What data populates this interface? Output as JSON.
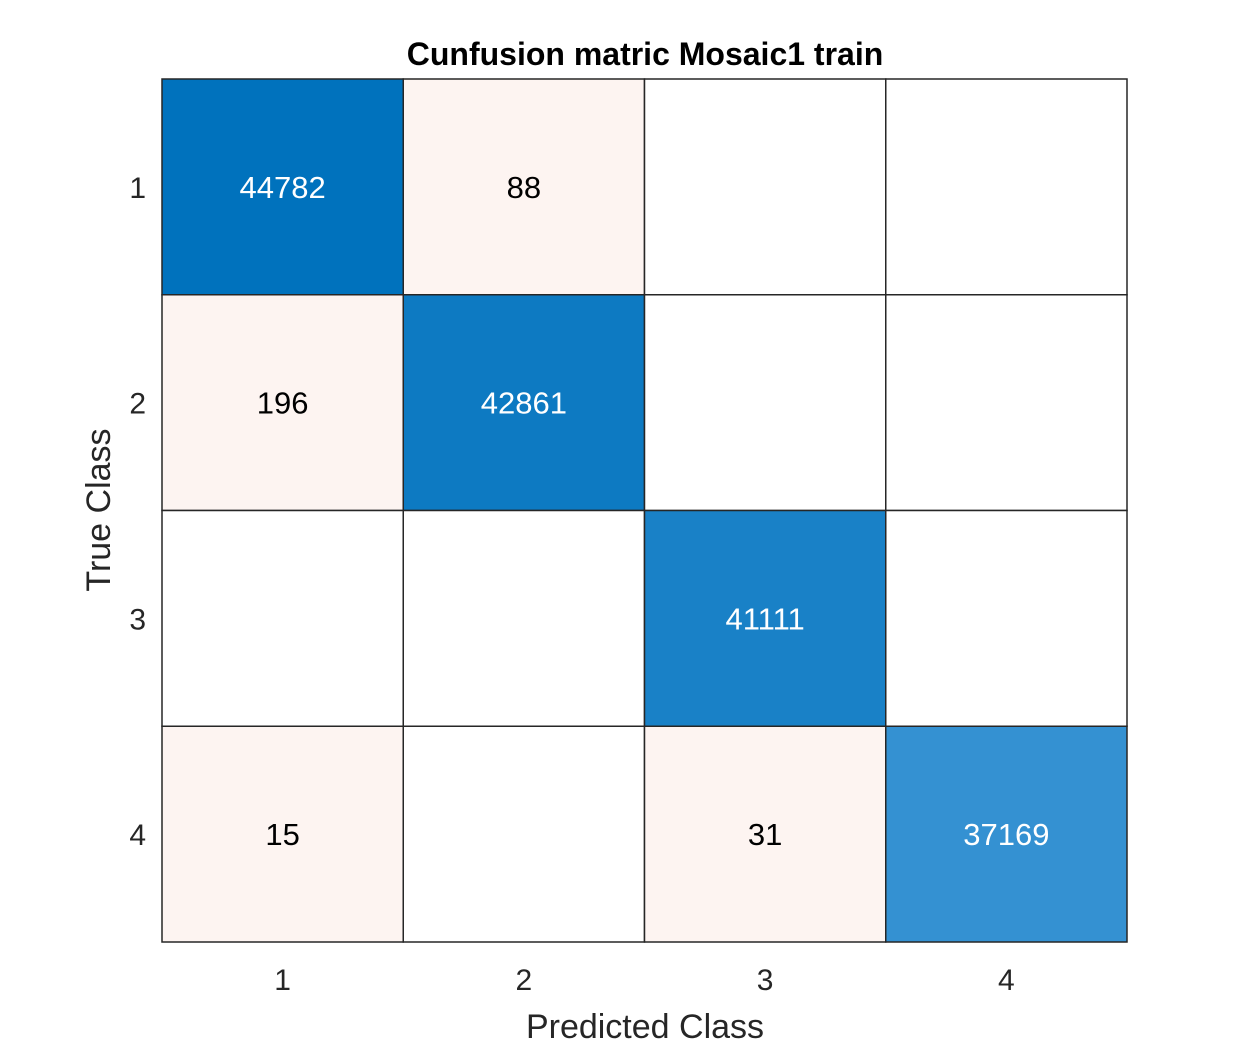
{
  "chart_data": {
    "type": "heatmap",
    "title": "Cunfusion matric Mosaic1 train",
    "xlabel": "Predicted Class",
    "ylabel": "True Class",
    "x_categories": [
      "1",
      "2",
      "3",
      "4"
    ],
    "y_categories": [
      "1",
      "2",
      "3",
      "4"
    ],
    "matrix": [
      [
        44782,
        88,
        null,
        null
      ],
      [
        196,
        42861,
        null,
        null
      ],
      [
        null,
        null,
        41111,
        null
      ],
      [
        15,
        null,
        31,
        37169
      ]
    ],
    "colors": {
      "diagonal_high": "#0072BD",
      "off_diagonal_low": "#FDF4F1",
      "empty": "#FFFFFF",
      "grid": "#262626",
      "text_dark": "#000000",
      "text_light": "#FFFFFF"
    }
  }
}
